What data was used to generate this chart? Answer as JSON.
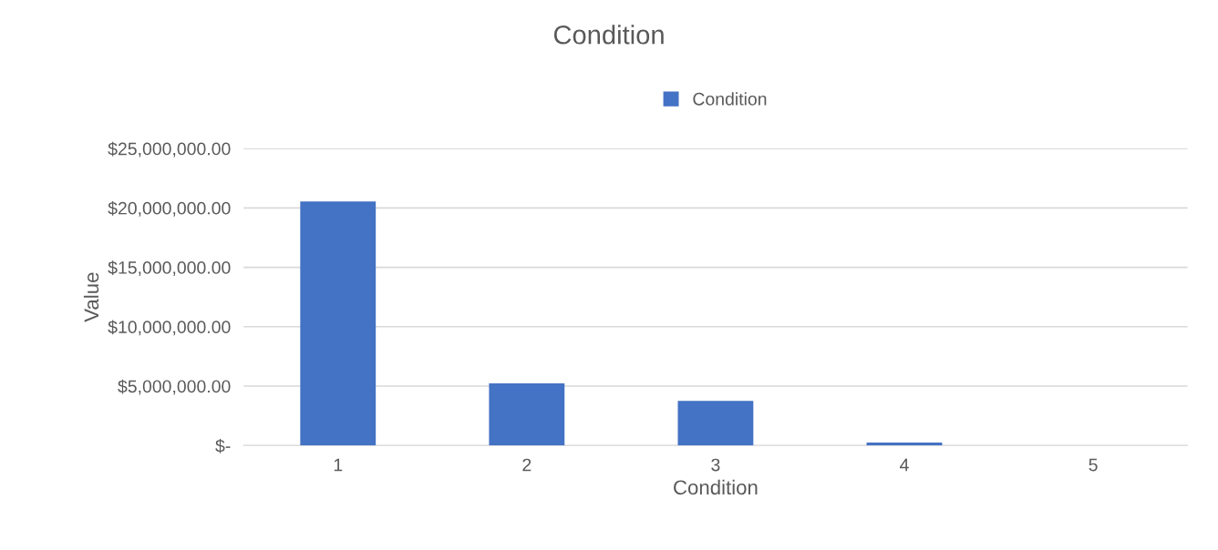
{
  "chart_data": {
    "type": "bar",
    "title": "Condition",
    "xlabel": "Condition",
    "ylabel": "Value",
    "categories": [
      "1",
      "2",
      "3",
      "4",
      "5"
    ],
    "series": [
      {
        "name": "Condition",
        "color": "#4472c4",
        "values": [
          20550000,
          5230000,
          3760000,
          250000,
          0
        ]
      }
    ],
    "ylim": [
      0,
      25000000
    ],
    "yticks": [
      {
        "value": 0,
        "label": "$-"
      },
      {
        "value": 5000000,
        "label": "$5,000,000.00"
      },
      {
        "value": 10000000,
        "label": "$10,000,000.00"
      },
      {
        "value": 15000000,
        "label": "$15,000,000.00"
      },
      {
        "value": 20000000,
        "label": "$20,000,000.00"
      },
      {
        "value": 25000000,
        "label": "$25,000,000.00"
      }
    ],
    "grid": "y",
    "legend": "top"
  }
}
